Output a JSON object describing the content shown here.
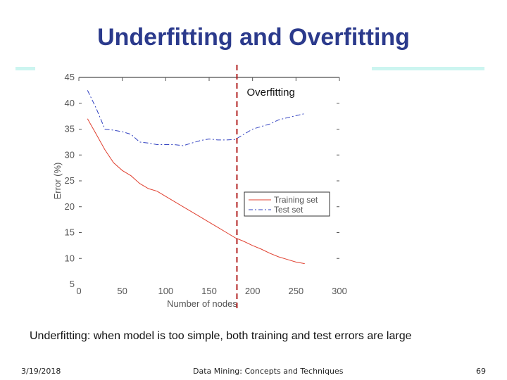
{
  "slide": {
    "title": "Underfitting and Overfitting",
    "caption_term": "Underfitting",
    "caption_rest": ": when model is too simple, both training and test errors are large",
    "footer_date": "3/19/2018",
    "footer_center": "Data Mining: Concepts and Techniques",
    "page_number": "69",
    "accent_color": "#2b3a8c",
    "deco_color": "#ccf5f0"
  },
  "chart_data": {
    "type": "line",
    "xlabel": "Number of nodes",
    "ylabel": "Error (%)",
    "xlim": [
      0,
      300
    ],
    "ylim": [
      5,
      45
    ],
    "x_ticks": [
      0,
      50,
      100,
      150,
      200,
      250,
      300
    ],
    "y_ticks": [
      5,
      10,
      15,
      20,
      25,
      30,
      35,
      40,
      45
    ],
    "grid": false,
    "legend_position": "lower-right",
    "annotation": {
      "label": "Overfitting",
      "x": 182,
      "color": "#b22222",
      "line_style": "dashed"
    },
    "series": [
      {
        "name": "Training set",
        "color": "#e04030",
        "style": "solid",
        "x": [
          10,
          20,
          30,
          40,
          50,
          60,
          70,
          80,
          90,
          100,
          110,
          120,
          130,
          140,
          150,
          160,
          170,
          180,
          190,
          200,
          210,
          220,
          230,
          240,
          250,
          260
        ],
        "y": [
          37,
          34,
          31,
          28.5,
          27,
          26,
          24.5,
          23.5,
          23,
          22,
          21,
          20,
          19,
          18,
          17,
          16,
          15,
          14,
          13.3,
          12.5,
          11.8,
          11,
          10.3,
          9.8,
          9.3,
          9
        ]
      },
      {
        "name": "Test set",
        "color": "#3040c0",
        "style": "dashdot",
        "x": [
          10,
          20,
          30,
          40,
          50,
          60,
          70,
          80,
          90,
          100,
          110,
          120,
          130,
          140,
          150,
          160,
          170,
          180,
          190,
          200,
          210,
          220,
          230,
          240,
          250,
          260
        ],
        "y": [
          42.5,
          39,
          35,
          34.8,
          34.5,
          34,
          32.5,
          32.3,
          32,
          32,
          32,
          31.8,
          32.3,
          32.8,
          33.1,
          32.9,
          32.9,
          33,
          34,
          35,
          35.5,
          36,
          36.8,
          37.2,
          37.6,
          38
        ]
      }
    ]
  }
}
